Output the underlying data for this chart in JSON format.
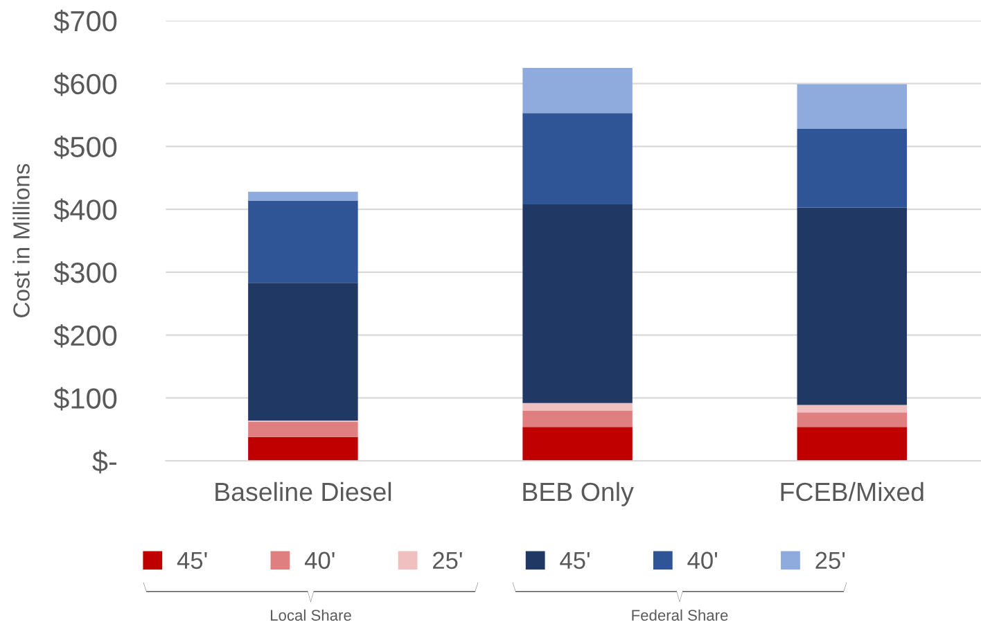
{
  "chart_data": {
    "type": "bar",
    "stacked": true,
    "ylabel": "Cost in Millions",
    "categories": [
      "Baseline Diesel",
      "BEB Only",
      "FCEB/Mixed"
    ],
    "series": [
      {
        "name": "45'",
        "color": "#c00000",
        "values": [
          38,
          54,
          54
        ]
      },
      {
        "name": "40'",
        "color": "#df7f7f",
        "values": [
          24,
          26,
          23
        ]
      },
      {
        "name": "25'",
        "color": "#f0c0c0",
        "values": [
          2,
          12,
          12
        ]
      },
      {
        "name": "45'",
        "color": "#203864",
        "values": [
          219,
          316,
          314
        ]
      },
      {
        "name": "40'",
        "color": "#2f5597",
        "values": [
          131,
          145,
          125
        ]
      },
      {
        "name": "25'",
        "color": "#8faadc",
        "values": [
          14,
          72,
          71
        ]
      }
    ],
    "ylim": [
      0,
      700
    ],
    "yticks": [
      {
        "value": 0,
        "label": "$-"
      },
      {
        "value": 100,
        "label": "$100"
      },
      {
        "value": 200,
        "label": "$200"
      },
      {
        "value": 300,
        "label": "$300"
      },
      {
        "value": 400,
        "label": "$400"
      },
      {
        "value": 500,
        "label": "$500"
      },
      {
        "value": 600,
        "label": "$600"
      },
      {
        "value": 700,
        "label": "$700"
      }
    ],
    "grid": "y",
    "legend": "bottom",
    "annotations": [
      "Local Share",
      "Federal Share"
    ]
  }
}
